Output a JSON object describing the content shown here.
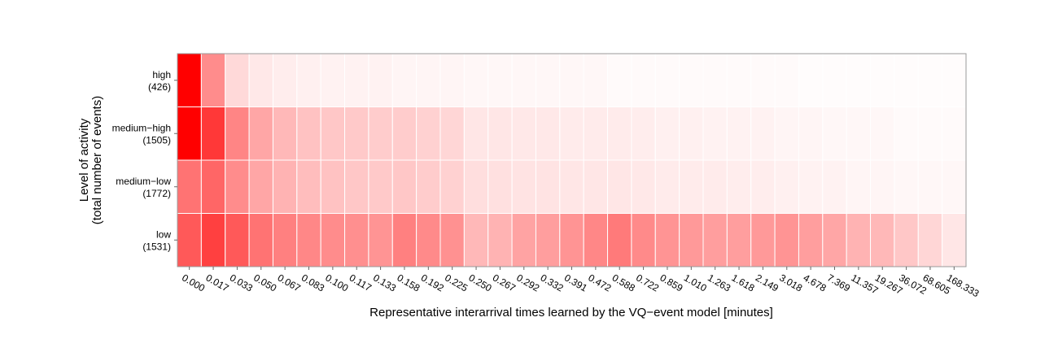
{
  "chart_data": {
    "type": "heatmap",
    "title": "",
    "xlabel": "Representative interarrival times learned by the VQ−event model [minutes]",
    "ylabel_line1": "Level of activity",
    "ylabel_line2": "(total number of events)",
    "x": [
      "0.000",
      "0.017",
      "0.033",
      "0.050",
      "0.067",
      "0.083",
      "0.100",
      "0.117",
      "0.133",
      "0.158",
      "0.192",
      "0.225",
      "0.250",
      "0.267",
      "0.292",
      "0.332",
      "0.391",
      "0.472",
      "0.588",
      "0.722",
      "0.859",
      "1.010",
      "1.263",
      "1.618",
      "2.149",
      "3.018",
      "4.678",
      "7.369",
      "11.357",
      "19.267",
      "36.072",
      "68.605",
      "168.333"
    ],
    "rows": [
      {
        "name": "high",
        "count": "(426)"
      },
      {
        "name": "medium−high",
        "count": "(1505)"
      },
      {
        "name": "medium−low",
        "count": "(1772)"
      },
      {
        "name": "low",
        "count": "(1531)"
      }
    ],
    "intensity": [
      [
        1.0,
        0.45,
        0.15,
        0.09,
        0.07,
        0.06,
        0.05,
        0.05,
        0.05,
        0.04,
        0.04,
        0.04,
        0.03,
        0.03,
        0.03,
        0.03,
        0.03,
        0.03,
        0.02,
        0.02,
        0.02,
        0.02,
        0.02,
        0.02,
        0.02,
        0.02,
        0.01,
        0.01,
        0.01,
        0.01,
        0.01,
        0.01,
        0.01
      ],
      [
        1.0,
        0.78,
        0.48,
        0.35,
        0.28,
        0.24,
        0.22,
        0.21,
        0.2,
        0.2,
        0.18,
        0.16,
        0.1,
        0.1,
        0.09,
        0.09,
        0.08,
        0.08,
        0.08,
        0.07,
        0.06,
        0.06,
        0.05,
        0.05,
        0.05,
        0.04,
        0.04,
        0.03,
        0.03,
        0.03,
        0.02,
        0.02,
        0.02
      ],
      [
        0.55,
        0.6,
        0.45,
        0.35,
        0.3,
        0.26,
        0.24,
        0.22,
        0.21,
        0.22,
        0.2,
        0.18,
        0.13,
        0.12,
        0.11,
        0.11,
        0.1,
        0.1,
        0.1,
        0.09,
        0.08,
        0.08,
        0.08,
        0.07,
        0.07,
        0.06,
        0.05,
        0.05,
        0.04,
        0.04,
        0.03,
        0.03,
        0.03
      ],
      [
        0.65,
        0.75,
        0.65,
        0.55,
        0.5,
        0.47,
        0.45,
        0.44,
        0.42,
        0.5,
        0.46,
        0.43,
        0.28,
        0.3,
        0.36,
        0.38,
        0.42,
        0.47,
        0.52,
        0.46,
        0.42,
        0.4,
        0.38,
        0.38,
        0.4,
        0.42,
        0.38,
        0.35,
        0.3,
        0.28,
        0.22,
        0.16,
        0.1
      ]
    ],
    "color_low": "#ffffff",
    "color_high": "#ff0000",
    "grid": true
  }
}
